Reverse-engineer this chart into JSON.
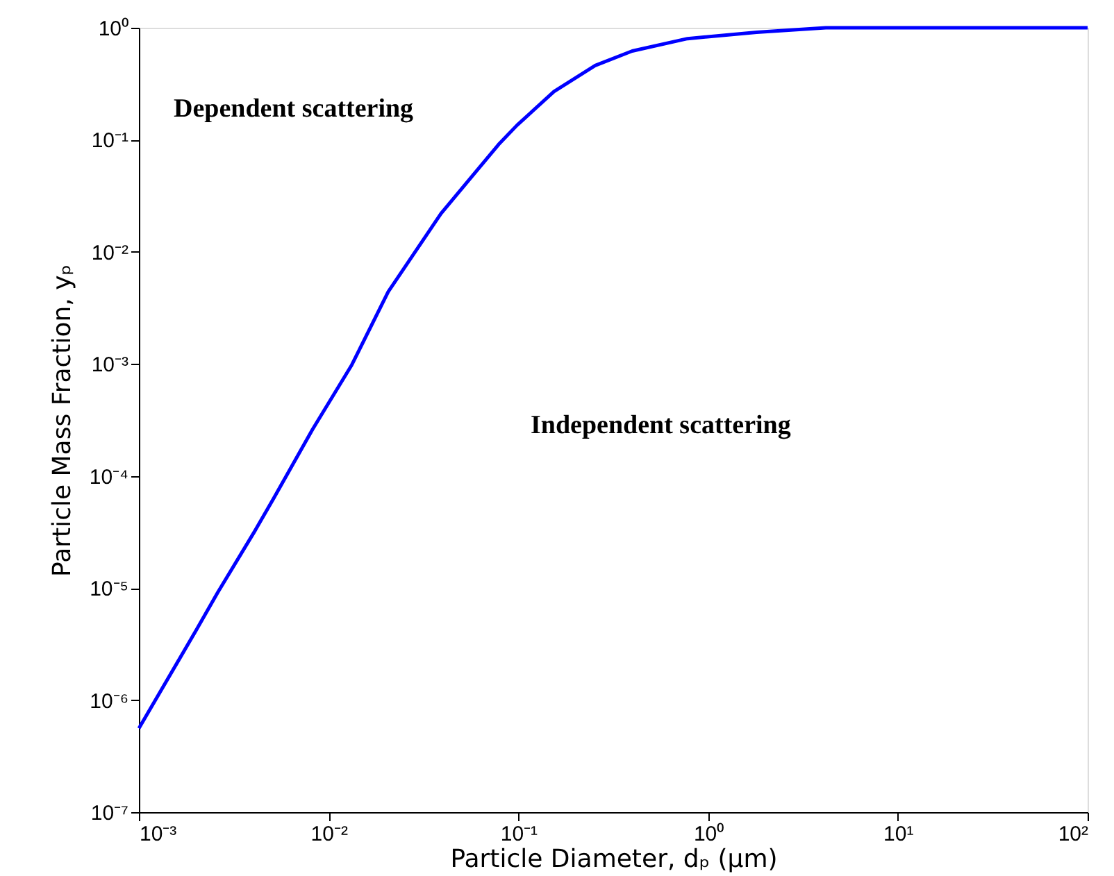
{
  "chart_data": {
    "type": "line",
    "xlabel": "Particle Diameter, dₚ (μm)",
    "ylabel": "Particle Mass Fraction, yₚ",
    "log": "xy",
    "grid": false,
    "marker": "none",
    "line_style": "solid",
    "x": [
      0.001,
      0.00202,
      0.0026,
      0.00407,
      0.00513,
      0.00822,
      0.01324,
      0.0206,
      0.0391,
      0.0787,
      0.0984,
      0.154,
      0.254,
      0.398,
      0.778,
      1.8,
      4.17,
      100
    ],
    "series": [
      {
        "color": "#0000ff",
        "values": [
          5.6e-07,
          4.3e-06,
          9.1e-06,
          3.2e-05,
          6.3e-05,
          0.00026,
          0.00098,
          0.0044,
          0.022,
          0.091,
          0.135,
          0.27,
          0.46,
          0.62,
          0.8,
          0.91,
          1,
          1
        ]
      }
    ],
    "xlim": [
      0.001,
      100
    ],
    "ylim": [
      1e-07,
      1
    ],
    "xticks": [
      {
        "value": 0.001,
        "label": "10⁻³"
      },
      {
        "value": 0.01,
        "label": "10⁻²"
      },
      {
        "value": 0.1,
        "label": "10⁻¹"
      },
      {
        "value": 1,
        "label": "10⁰"
      },
      {
        "value": 10,
        "label": "10¹"
      },
      {
        "value": 100,
        "label": "10²"
      }
    ],
    "yticks": [
      {
        "value": 1e-07,
        "label": "10⁻⁷"
      },
      {
        "value": 1e-06,
        "label": "10⁻⁶"
      },
      {
        "value": 1e-05,
        "label": "10⁻⁵"
      },
      {
        "value": 0.0001,
        "label": "10⁻⁴"
      },
      {
        "value": 0.001,
        "label": "10⁻³"
      },
      {
        "value": 0.01,
        "label": "10⁻²"
      },
      {
        "value": 0.1,
        "label": "10⁻¹"
      },
      {
        "value": 1,
        "label": "10⁰"
      }
    ],
    "annotations": [
      "Dependent scattering",
      "Independent scattering"
    ]
  }
}
